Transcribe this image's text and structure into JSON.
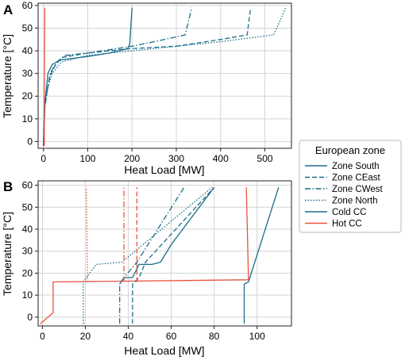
{
  "legend": {
    "title": "European zone",
    "entries": [
      {
        "label": "Zone South",
        "color": "#1b6e8a",
        "dash": "solid"
      },
      {
        "label": "Zone CEast",
        "color": "#1b6e8a",
        "dash": "dashed"
      },
      {
        "label": "Zone CWest",
        "color": "#1b6e8a",
        "dash": "dashdot"
      },
      {
        "label": "Zone North",
        "color": "#1b6e8a",
        "dash": "dotted"
      },
      {
        "label": "Cold CC",
        "color": "#1b6e8a",
        "dash": "solid"
      },
      {
        "label": "Hot CC",
        "color": "#e8533f",
        "dash": "solid"
      }
    ]
  },
  "chart_data": [
    {
      "panel": "A",
      "type": "line",
      "xlabel": "Heat Load [MW]",
      "ylabel": "Temperature [°C]",
      "xlim": [
        -12,
        560
      ],
      "ylim": [
        -3,
        61
      ],
      "xticks": [
        0,
        100,
        200,
        300,
        400,
        500
      ],
      "yticks": [
        0,
        10,
        20,
        30,
        40,
        50,
        60
      ],
      "grid": true,
      "series": [
        {
          "name": "Zone South",
          "color": "#1b6e8a",
          "dash": "solid",
          "points": [
            [
              0,
              -2
            ],
            [
              2,
              15
            ],
            [
              5,
              20
            ],
            [
              10,
              30
            ],
            [
              20,
              34
            ],
            [
              40,
              36
            ],
            [
              100,
              37.5
            ],
            [
              150,
              39
            ],
            [
              190,
              41
            ],
            [
              195,
              43
            ],
            [
              200,
              59
            ]
          ]
        },
        {
          "name": "Zone CEast",
          "color": "#1b6e8a",
          "dash": "dashed",
          "points": [
            [
              0,
              -2
            ],
            [
              3,
              15
            ],
            [
              8,
              22
            ],
            [
              15,
              29
            ],
            [
              25,
              33
            ],
            [
              40,
              37
            ],
            [
              100,
              39
            ],
            [
              200,
              41
            ],
            [
              300,
              42
            ],
            [
              400,
              45
            ],
            [
              460,
              47
            ],
            [
              468,
              59
            ]
          ]
        },
        {
          "name": "Zone CWest",
          "color": "#1b6e8a",
          "dash": "dashdot",
          "points": [
            [
              0,
              -2
            ],
            [
              3,
              15
            ],
            [
              8,
              22
            ],
            [
              15,
              30
            ],
            [
              30,
              35
            ],
            [
              50,
              38
            ],
            [
              100,
              39
            ],
            [
              200,
              42
            ],
            [
              250,
              44
            ],
            [
              320,
              47
            ],
            [
              335,
              59
            ]
          ]
        },
        {
          "name": "Zone North",
          "color": "#1b6e8a",
          "dash": "dotted",
          "points": [
            [
              0,
              -2
            ],
            [
              3,
              15
            ],
            [
              10,
              24
            ],
            [
              20,
              30
            ],
            [
              40,
              35
            ],
            [
              100,
              38
            ],
            [
              200,
              40
            ],
            [
              300,
              42
            ],
            [
              400,
              44
            ],
            [
              520,
              47
            ],
            [
              547,
              59
            ]
          ]
        },
        {
          "name": "Hot CC",
          "color": "#e8533f",
          "dash": "solid",
          "points": [
            [
              2,
              -2
            ],
            [
              2,
              15
            ],
            [
              3,
              59
            ]
          ]
        }
      ]
    },
    {
      "panel": "B",
      "type": "line",
      "xlabel": "Heat Load [MW]",
      "ylabel": "Temperature [°C]",
      "xlim": [
        -2,
        116
      ],
      "ylim": [
        -4,
        62
      ],
      "xticks": [
        0,
        20,
        40,
        60,
        80,
        100
      ],
      "yticks": [
        0,
        10,
        20,
        30,
        40,
        50,
        60
      ],
      "grid": true,
      "series": [
        {
          "name": "Cold CC",
          "color": "#1b6e8a",
          "dash": "solid",
          "points": [
            [
              94,
              -3
            ],
            [
              94,
              15
            ],
            [
              96,
              16
            ],
            [
              110,
              59
            ]
          ]
        },
        {
          "name": "Hot CC",
          "color": "#e8533f",
          "dash": "solid",
          "points": [
            [
              -1,
              -3
            ],
            [
              5,
              2
            ],
            [
              5,
              16
            ],
            [
              96,
              17
            ],
            [
              95,
              59
            ]
          ]
        },
        {
          "name": "Zone CEast",
          "color": "#1b6e8a",
          "dash": "dashed",
          "points": [
            [
              42,
              -3
            ],
            [
              42,
              15
            ],
            [
              45,
              18
            ],
            [
              48,
              25
            ],
            [
              80,
              59
            ]
          ]
        },
        {
          "name": "Zone CWest",
          "color": "#1b6e8a",
          "dash": "dashdot",
          "points": [
            [
              36,
              -3
            ],
            [
              36,
              15
            ],
            [
              38,
              18
            ],
            [
              44,
              25
            ],
            [
              66,
              59
            ]
          ]
        },
        {
          "name": "Zone North",
          "color": "#1b6e8a",
          "dash": "dotted",
          "points": [
            [
              19,
              -3
            ],
            [
              19,
              16
            ],
            [
              25,
              24
            ],
            [
              37,
              25
            ],
            [
              79,
              59
            ]
          ]
        },
        {
          "name": "Zone South",
          "color": "#1b6e8a",
          "dash": "solid",
          "points": [
            [
              36,
              15
            ],
            [
              38,
              18
            ],
            [
              42,
              18
            ],
            [
              45,
              24
            ],
            [
              51,
              24
            ],
            [
              55,
              25
            ],
            [
              60,
              33
            ],
            [
              80,
              59
            ]
          ]
        },
        {
          "name": "Hot CC (zone)",
          "color": "#e8533f",
          "dash": "dotted",
          "points": [
            [
              21,
              16
            ],
            [
              20.5,
              59
            ]
          ]
        },
        {
          "name": "Hot CC (zone)",
          "color": "#e8533f",
          "dash": "dashdot",
          "points": [
            [
              38,
              16
            ],
            [
              38,
              59
            ]
          ]
        },
        {
          "name": "Hot CC (zone)",
          "color": "#e8533f",
          "dash": "dashed",
          "points": [
            [
              44,
              16
            ],
            [
              44,
              59
            ]
          ]
        }
      ]
    }
  ],
  "panels": {
    "A": {
      "letter": "A"
    },
    "B": {
      "letter": "B"
    }
  }
}
